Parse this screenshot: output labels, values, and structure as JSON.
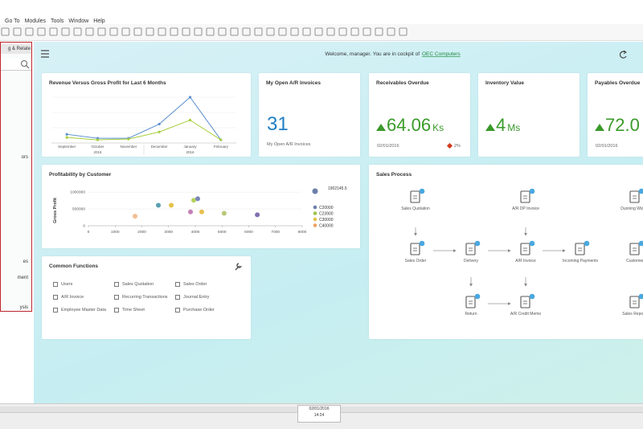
{
  "menu": [
    "Go To",
    "Modules",
    "Tools",
    "Window",
    "Help"
  ],
  "side_panel": {
    "tab": "g & Relate",
    "items": [
      "ors",
      "es",
      "ment",
      "ysis"
    ]
  },
  "header": {
    "welcome": "Welcome, manager. You are in cockpit of",
    "company": "OEC Computers"
  },
  "kpis": [
    {
      "title": "My Open A/R Invoices",
      "value": "31",
      "caption": "My Open A/R Invoices"
    },
    {
      "title": "Receivables Overdue",
      "value": "64.06",
      "unit": "Ks",
      "date": "02/01/2016",
      "change": "2%"
    },
    {
      "title": "Inventory Value",
      "value": "4",
      "unit": "Ms"
    },
    {
      "title": "Payables Overdue",
      "value": "72.0",
      "date": "02/01/2016"
    }
  ],
  "chart_data": [
    {
      "type": "line",
      "title": "Revenue Versus Gross Profit for Last 6 Months",
      "categories": [
        "September",
        "October",
        "November",
        "December",
        "January",
        "February"
      ],
      "year_labels": [
        "2015",
        "2016"
      ],
      "series": [
        {
          "color": "#5b8fd0",
          "values": [
            11,
            6,
            6,
            24,
            58,
            4
          ]
        },
        {
          "color": "#a6cf3c",
          "values": [
            7,
            4,
            5,
            14,
            29,
            4
          ]
        }
      ]
    },
    {
      "type": "scatter",
      "title": "Profitability by Customer",
      "ylabel": "Gross Profit",
      "xlim": [
        0,
        8000
      ],
      "xticks": [
        0,
        1000,
        2000,
        3000,
        4000,
        5000,
        6000,
        7000,
        8000
      ],
      "ylim": [
        0,
        1100000
      ],
      "yticks": [
        0,
        500000,
        1000000
      ],
      "size_legend": 1902145.5,
      "legend": [
        {
          "name": "C20000",
          "color": "#6b7fa8"
        },
        {
          "name": "C23900",
          "color": "#9cc24a"
        },
        {
          "name": "C30000",
          "color": "#e3c24a"
        },
        {
          "name": "C40000",
          "color": "#f0a060"
        }
      ],
      "points": [
        {
          "x": 2617,
          "y": 608700,
          "color": "#5aa0b0"
        },
        {
          "x": 3100,
          "y": 608700,
          "color": "#e3c24a"
        },
        {
          "x": 1745,
          "y": 282600,
          "color": "#f4bd90"
        },
        {
          "x": 3820,
          "y": 413000,
          "color": "#c580b5"
        },
        {
          "x": 4240,
          "y": 413000,
          "color": "#e8c050"
        },
        {
          "x": 3940,
          "y": 760000,
          "color": "#b5d25a"
        },
        {
          "x": 4090,
          "y": 804000,
          "color": "#7a86b8"
        },
        {
          "x": 5080,
          "y": 370000,
          "color": "#b7c878"
        },
        {
          "x": 6320,
          "y": 326000,
          "color": "#8070b0"
        }
      ]
    }
  ],
  "common_functions": {
    "title": "Common Functions",
    "items": [
      "Users",
      "Sales Quotation",
      "Sales Order",
      "A/R Invoice",
      "Recurring Transactions",
      "Journal Entry",
      "Employee Master Data",
      "Time Sheet",
      "Purchase Order"
    ]
  },
  "sales_process": {
    "title": "Sales Process",
    "nodes": [
      "Sales Quotation",
      "A/R DP Invoice",
      "Dunning Wizard",
      "Sales Order",
      "Delivery",
      "A/R Invoice",
      "Incoming Payments",
      "Customer",
      "Return",
      "A/R Credit Memo",
      "Sales Reports"
    ]
  },
  "status_bar": {
    "date": "02/01/2016",
    "time": "14:24"
  }
}
